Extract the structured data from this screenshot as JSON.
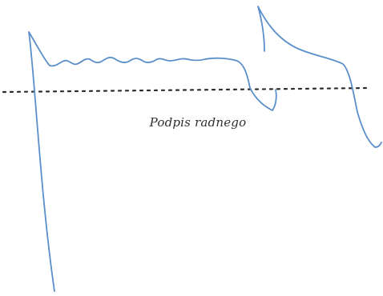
{
  "signature_block": {
    "caption": "Podpis radnego",
    "ink_color": "#5a8fca",
    "line_color": "#2b2b2b"
  }
}
